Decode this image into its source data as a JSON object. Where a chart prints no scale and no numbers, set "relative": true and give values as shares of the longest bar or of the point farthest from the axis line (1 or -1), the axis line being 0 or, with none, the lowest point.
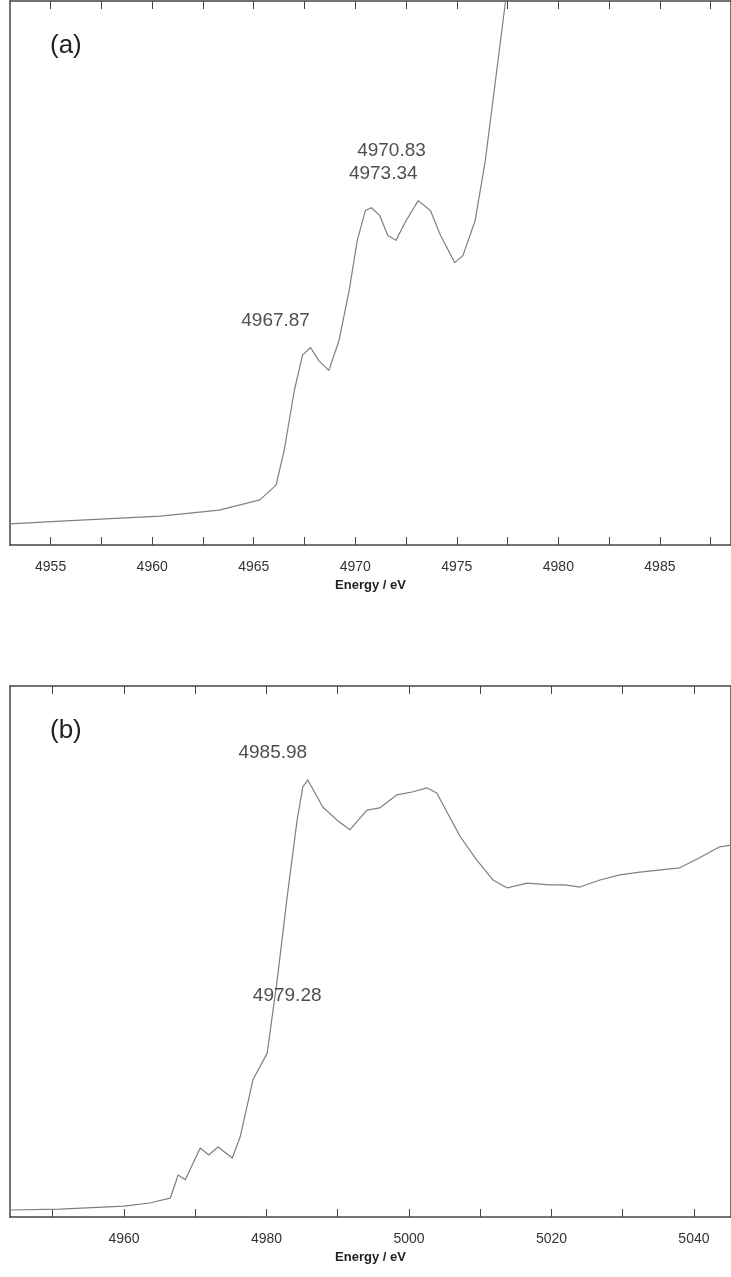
{
  "chart_data": [
    {
      "type": "line",
      "xlabel": "Energy / eV",
      "relative": true,
      "grid": false,
      "marker": "none",
      "line_style": "solid",
      "xlim": [
        4953.0,
        4988.5
      ],
      "xticks": [
        4955,
        {
          "value": 4957.5,
          "label": null
        },
        4960,
        {
          "value": 4962.5,
          "label": null
        },
        4965,
        {
          "value": 4967.5,
          "label": null
        },
        4970,
        {
          "value": 4972.5,
          "label": null
        },
        4975,
        {
          "value": 4977.5,
          "label": null
        },
        4980,
        {
          "value": 4982.5,
          "label": null
        },
        4985,
        {
          "value": 4987.5,
          "label": null
        }
      ],
      "annotations": [
        "(a)",
        {
          "text": "4967.87",
          "x": 4967.8,
          "y": 0.363
        },
        {
          "text": "4970.83",
          "x": 4970.8,
          "y": 0.62
        },
        {
          "text": "4973.34",
          "x": 4973.1,
          "y": 0.633
        }
      ],
      "series": [
        {
          "color": "#7f7f7f",
          "x": [
            4953.0,
            4955.5,
            4960.4,
            4963.3,
            4965.3,
            4966.1,
            4966.5,
            4967.0,
            4967.4,
            4967.8,
            4968.2,
            4968.7,
            4969.2,
            4969.7,
            4970.1,
            4970.5,
            4970.8,
            4971.2,
            4971.6,
            4972.0,
            4972.5,
            4973.1,
            4973.7,
            4974.2,
            4974.9,
            4975.3,
            4975.9,
            4976.4,
            4976.9,
            4977.4
          ],
          "values": [
            0.039,
            0.044,
            0.053,
            0.064,
            0.083,
            0.11,
            0.174,
            0.284,
            0.349,
            0.363,
            0.339,
            0.321,
            0.376,
            0.468,
            0.56,
            0.615,
            0.62,
            0.606,
            0.569,
            0.56,
            0.596,
            0.633,
            0.615,
            0.569,
            0.519,
            0.532,
            0.596,
            0.706,
            0.853,
            1
          ]
        }
      ]
    },
    {
      "type": "line",
      "xlabel": "Energy / eV",
      "relative": true,
      "grid": false,
      "marker": "none",
      "line_style": "solid",
      "xlim": [
        4944,
        5045.2
      ],
      "xticks": [
        {
          "value": 4950,
          "label": null
        },
        4960,
        {
          "value": 4970,
          "label": null
        },
        4980,
        {
          "value": 4990,
          "label": null
        },
        5000,
        {
          "value": 5010,
          "label": null
        },
        5020,
        {
          "value": 5030,
          "label": null
        },
        5040
      ],
      "annotations": [
        "(b)",
        {
          "text": "4985.98",
          "x": 4985.8,
          "y": 1
        },
        {
          "text": "4979.28",
          "x": 4980.1,
          "y": 0.375
        }
      ],
      "series": [
        {
          "color": "#7f7f7f",
          "x": [
            4944,
            4951,
            4960,
            4963.6,
            4966.5,
            4967.6,
            4968.6,
            4970.7,
            4971.9,
            4973.2,
            4975.2,
            4976.3,
            4978.1,
            4980.1,
            4981.5,
            4982.9,
            4984.3,
            4985.1,
            4985.8,
            4987.9,
            4989.9,
            4991.7,
            4994.1,
            4995.9,
            4998.3,
            5000.6,
            5002.5,
            5003.9,
            5007.2,
            5009.5,
            5011.8,
            5013.8,
            5016.6,
            5019.8,
            5021.9,
            5024,
            5026.8,
            5029.6,
            5032.4,
            5038,
            5040.8,
            5043.6,
            5045.2
          ],
          "values": [
            0.016,
            0.018,
            0.025,
            0.032,
            0.043,
            0.096,
            0.085,
            0.158,
            0.142,
            0.16,
            0.135,
            0.183,
            0.314,
            0.375,
            0.542,
            0.732,
            0.908,
            0.984,
            1,
            0.938,
            0.908,
            0.886,
            0.931,
            0.936,
            0.966,
            0.973,
            0.982,
            0.97,
            0.87,
            0.817,
            0.771,
            0.753,
            0.764,
            0.76,
            0.76,
            0.755,
            0.771,
            0.783,
            0.789,
            0.799,
            0.822,
            0.847,
            0.851
          ]
        }
      ]
    }
  ]
}
